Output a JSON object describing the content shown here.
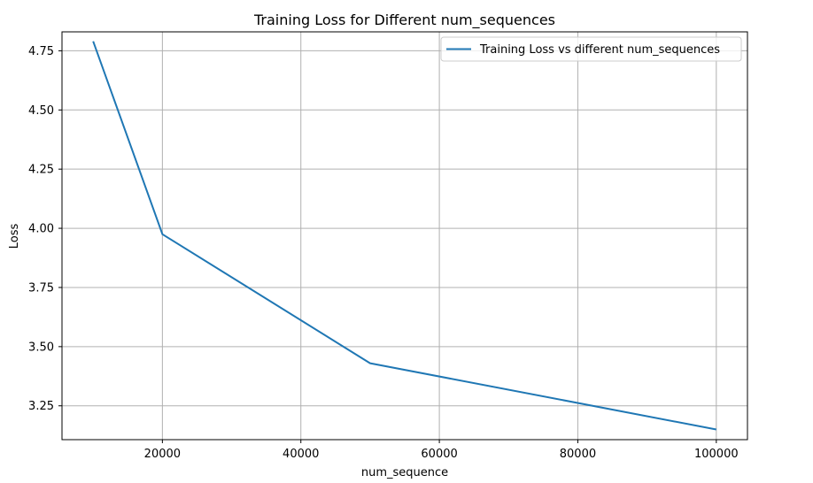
{
  "chart_data": {
    "type": "line",
    "title": "Training Loss for Different num_sequences",
    "xlabel": "num_sequence",
    "ylabel": "Loss",
    "xlim": [
      5500,
      104500
    ],
    "ylim": [
      3.107,
      4.83
    ],
    "xticks": [
      20000,
      40000,
      60000,
      80000,
      100000
    ],
    "yticks": [
      3.25,
      3.5,
      3.75,
      4.0,
      4.25,
      4.5,
      4.75
    ],
    "xtick_labels": [
      "20000",
      "40000",
      "60000",
      "80000",
      "100000"
    ],
    "ytick_labels": [
      "3.25",
      "3.50",
      "3.75",
      "4.00",
      "4.25",
      "4.50",
      "4.75"
    ],
    "grid": true,
    "legend_position": "top-right",
    "series": [
      {
        "name": "Training Loss vs different num_sequences",
        "color": "#1f77b4",
        "x": [
          10000,
          20000,
          50000,
          100000
        ],
        "y": [
          4.79,
          3.975,
          3.43,
          3.15
        ]
      }
    ]
  }
}
